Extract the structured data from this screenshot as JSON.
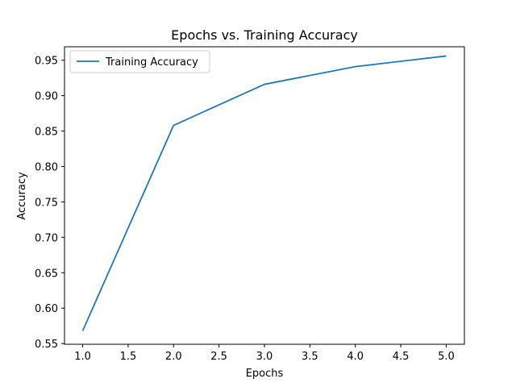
{
  "chart_data": {
    "type": "line",
    "title": "Epochs vs. Training Accuracy",
    "xlabel": "Epochs",
    "ylabel": "Accuracy",
    "xlim": [
      0.8,
      5.2
    ],
    "ylim": [
      0.549,
      0.969
    ],
    "xticks": [
      1.0,
      1.5,
      2.0,
      2.5,
      3.0,
      3.5,
      4.0,
      4.5,
      5.0
    ],
    "xtick_labels": [
      "1.0",
      "1.5",
      "2.0",
      "2.5",
      "3.0",
      "3.5",
      "4.0",
      "4.5",
      "5.0"
    ],
    "yticks": [
      0.55,
      0.6,
      0.65,
      0.7,
      0.75,
      0.8,
      0.85,
      0.9,
      0.95
    ],
    "ytick_labels": [
      "0.55",
      "0.60",
      "0.65",
      "0.70",
      "0.75",
      "0.80",
      "0.85",
      "0.90",
      "0.95"
    ],
    "grid": false,
    "legend_position": "upper-left",
    "series": [
      {
        "name": "Training Accuracy",
        "color": "#1f77b4",
        "x": [
          1,
          2,
          3,
          4,
          5
        ],
        "y": [
          0.568,
          0.858,
          0.916,
          0.941,
          0.956
        ]
      }
    ]
  }
}
